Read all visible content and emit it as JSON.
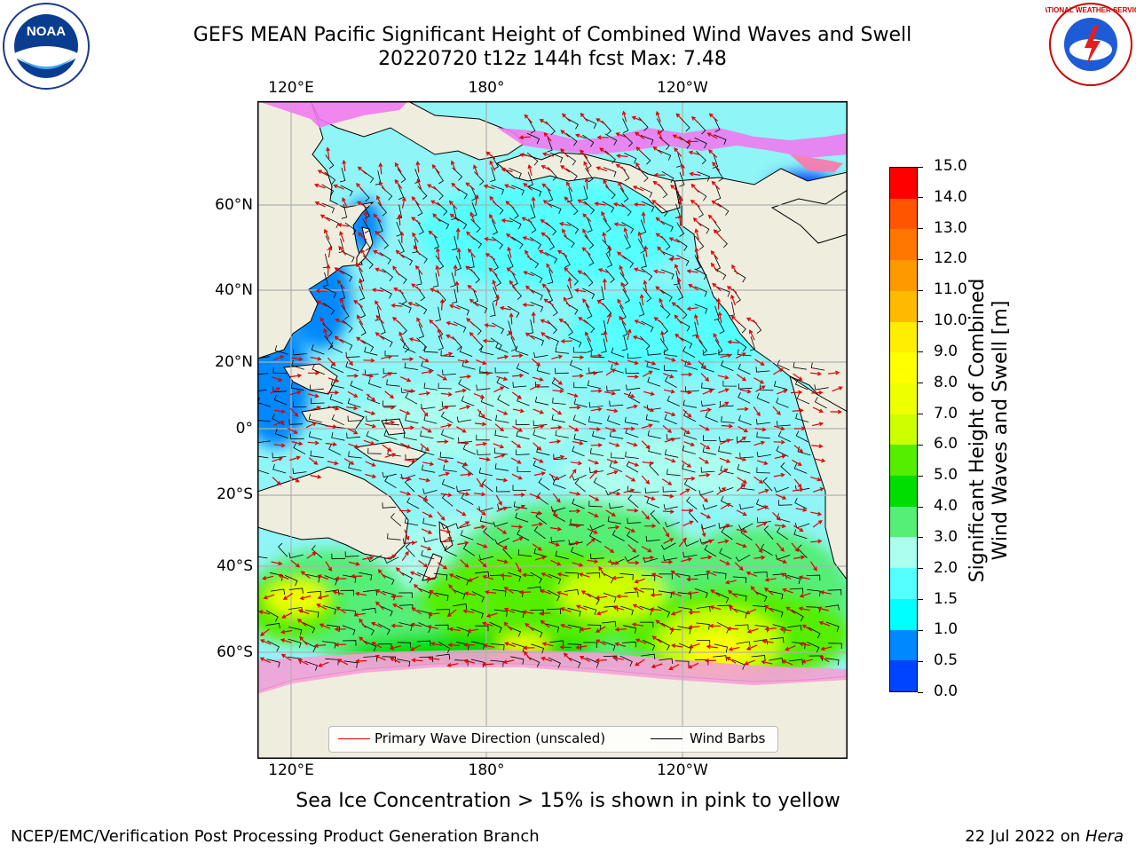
{
  "header": {
    "title_line1": "GEFS MEAN Pacific Significant Height of Combined Wind Waves and Swell",
    "title_line2": "20220720 t12z 144h fcst   Max: 7.48"
  },
  "logos": {
    "noara_icon": "noaa-logo",
    "nws_icon": "nws-logo",
    "noaa_text": "NOAA",
    "nws_ring_text": "NATIONAL WEATHER SERVICE"
  },
  "map": {
    "top_ticks": [
      "120°E",
      "180°",
      "120°W"
    ],
    "bottom_ticks": [
      "120°E",
      "180°",
      "120°W"
    ],
    "left_ticks": [
      "60°N",
      "40°N",
      "20°N",
      "0°",
      "20°S",
      "40°S",
      "60°S"
    ],
    "colors": {
      "land": "#efedde",
      "ocean_base": "#8ff5f6",
      "gridline": "#b0b0b0",
      "wave_arrow": "#e00000",
      "wind_barb": "#000000",
      "ice_pink": "#f07af0"
    }
  },
  "legend": {
    "primary_wave": "Primary Wave Direction (unscaled)",
    "wind_barbs": "Wind Barbs"
  },
  "colorbar": {
    "title_line1": "Significant Height of Combined",
    "title_line2": "Wind Waves and Swell [m]",
    "labels": [
      "15.0",
      "14.0",
      "13.0",
      "12.0",
      "11.0",
      "10.0",
      "9.0",
      "8.0",
      "7.0",
      "6.0",
      "5.0",
      "4.0",
      "3.0",
      "2.0",
      "1.5",
      "1.0",
      "0.5",
      "0.0"
    ],
    "colors": [
      "#ff0000",
      "#ff3300",
      "#ff5500",
      "#ff7700",
      "#ff9900",
      "#ffbb00",
      "#ffee00",
      "#ffff00",
      "#eeff00",
      "#ccff00",
      "#55ee00",
      "#00dd00",
      "#55ee77",
      "#aaffee",
      "#55ffff",
      "#00ffff",
      "#0088ff",
      "#0044ff",
      "#0000ff"
    ]
  },
  "caption": "Sea Ice Concentration > 15% is shown in pink to yellow",
  "footer": {
    "left": "NCEP/EMC/Verification Post Processing Product Generation Branch",
    "right_date": "22 Jul 2022 on ",
    "right_machine": "Hera"
  }
}
